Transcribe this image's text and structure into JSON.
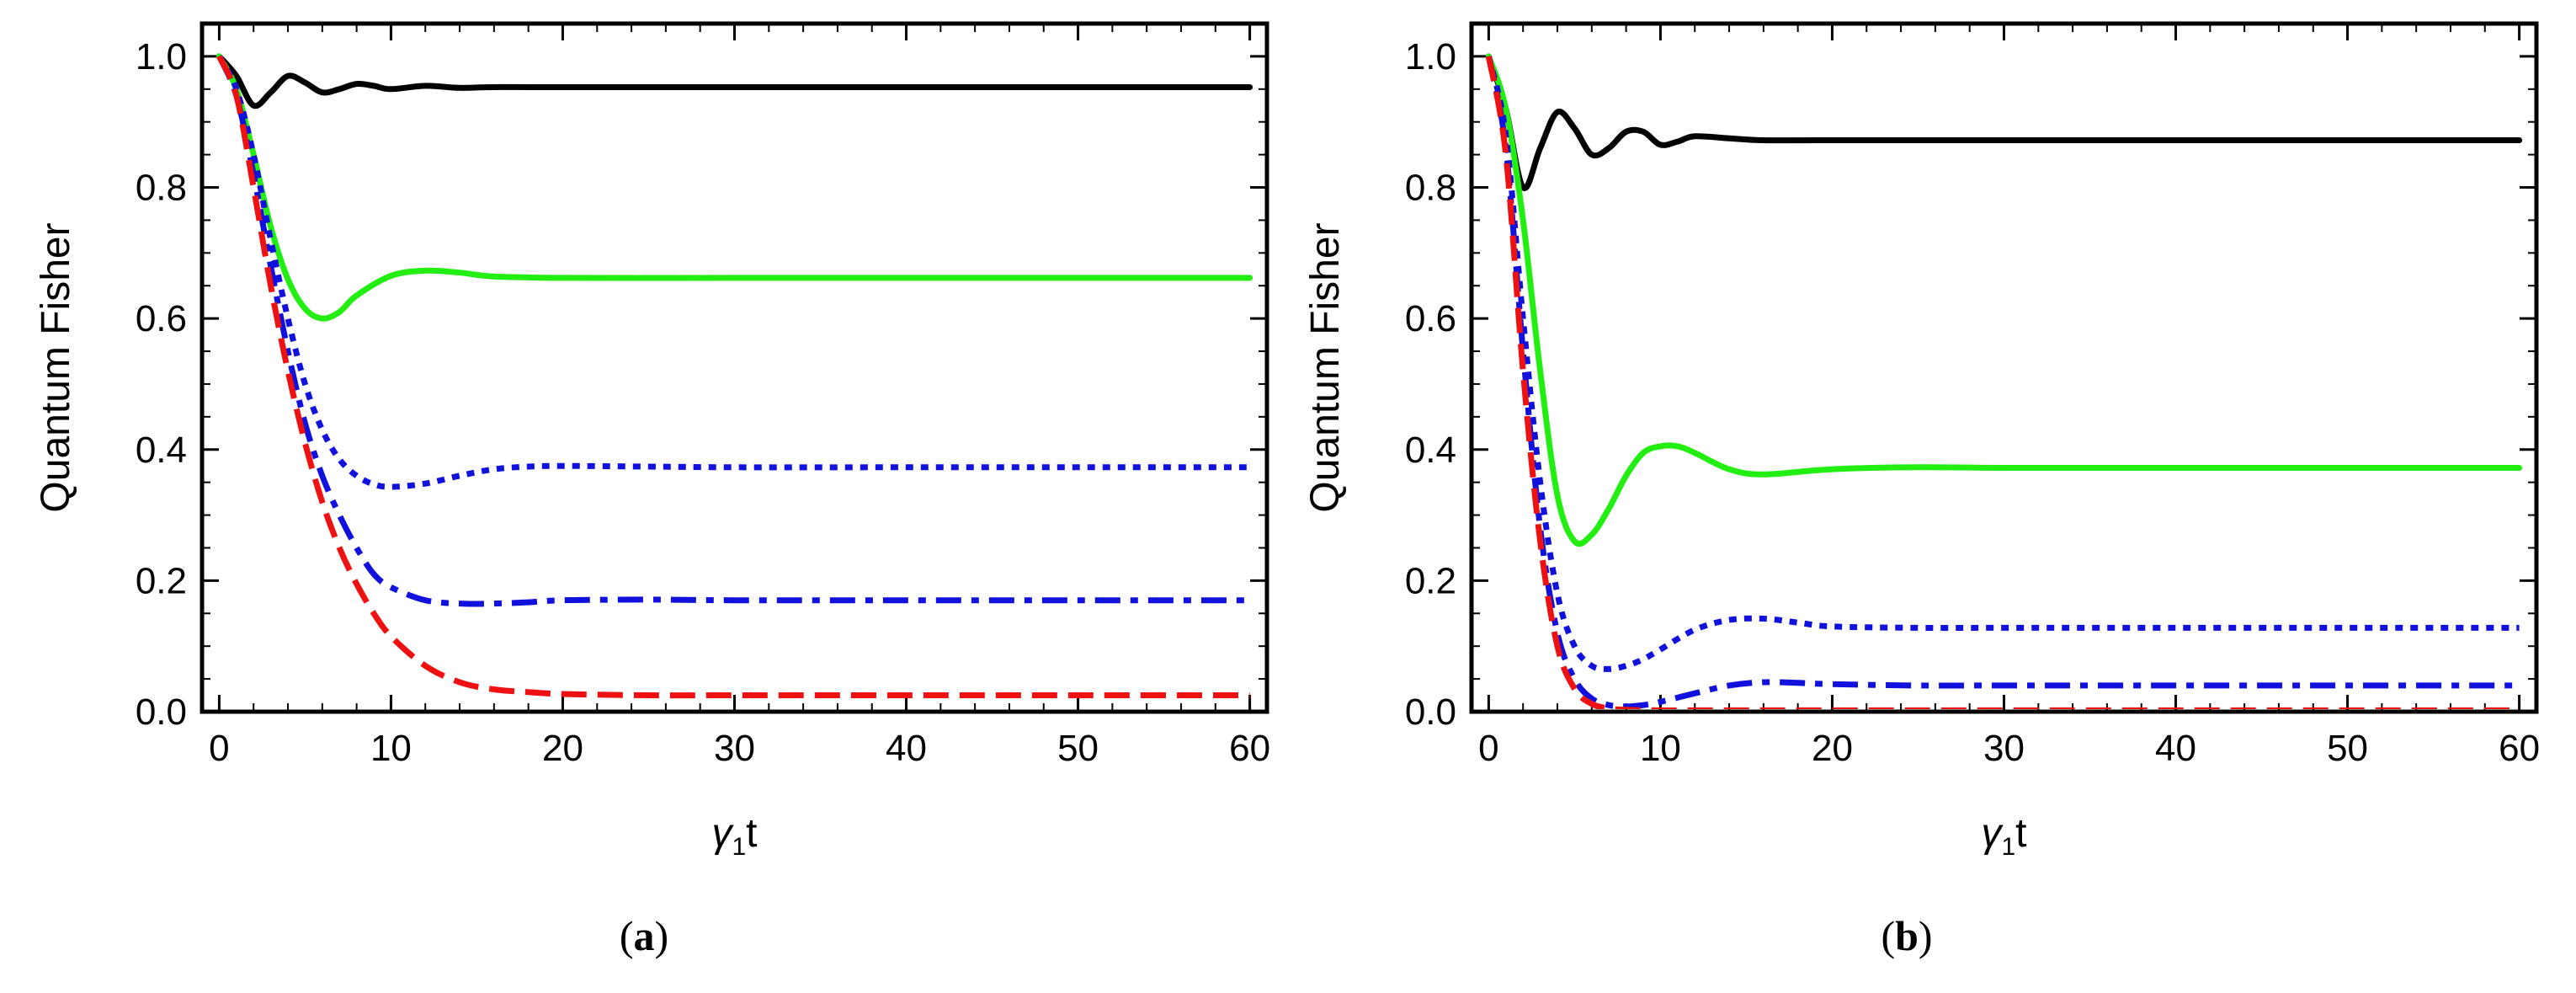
{
  "chart_data": [
    {
      "type": "line",
      "panel_label": "a",
      "title": "",
      "xlabel": {
        "symbol": "γ",
        "subscript": "1",
        "suffix": "t"
      },
      "ylabel": "Quantum Fisher",
      "xlim": [
        -1,
        61
      ],
      "ylim": [
        0,
        1.05
      ],
      "xticks": [
        0,
        10,
        20,
        30,
        40,
        50,
        60
      ],
      "yticks": [
        0.0,
        0.2,
        0.4,
        0.6,
        0.8,
        1.0
      ],
      "grid": false,
      "legend": "none",
      "series": [
        {
          "name": "black solid",
          "color": "#000000",
          "style": "solid",
          "x": [
            0,
            1,
            2,
            3,
            4,
            5,
            6,
            7,
            8,
            9,
            10,
            12,
            14,
            16,
            20,
            30,
            40,
            50,
            60
          ],
          "y": [
            1.0,
            0.97,
            0.925,
            0.945,
            0.97,
            0.96,
            0.945,
            0.95,
            0.958,
            0.955,
            0.95,
            0.955,
            0.952,
            0.953,
            0.953,
            0.953,
            0.953,
            0.953,
            0.953
          ]
        },
        {
          "name": "green solid",
          "color": "#22ee11",
          "style": "solid",
          "x": [
            0,
            1,
            2,
            3,
            4,
            5,
            6,
            7,
            8,
            10,
            12,
            14,
            16,
            20,
            30,
            40,
            50,
            60
          ],
          "y": [
            1.0,
            0.95,
            0.85,
            0.74,
            0.66,
            0.615,
            0.6,
            0.61,
            0.635,
            0.665,
            0.673,
            0.67,
            0.664,
            0.662,
            0.662,
            0.662,
            0.662,
            0.662
          ]
        },
        {
          "name": "blue dotted",
          "color": "#1111dd",
          "style": "dotted",
          "x": [
            0,
            1,
            2,
            3,
            4,
            5,
            6,
            7,
            8,
            9,
            10,
            12,
            14,
            16,
            18,
            20,
            25,
            30,
            40,
            50,
            60
          ],
          "y": [
            1.0,
            0.95,
            0.85,
            0.72,
            0.6,
            0.5,
            0.43,
            0.385,
            0.36,
            0.347,
            0.343,
            0.348,
            0.36,
            0.37,
            0.374,
            0.375,
            0.374,
            0.373,
            0.373,
            0.373,
            0.373
          ]
        },
        {
          "name": "blue dash-dot",
          "color": "#1111dd",
          "style": "dashdot",
          "x": [
            0,
            1,
            2,
            3,
            4,
            5,
            6,
            7,
            8,
            9,
            10,
            12,
            14,
            16,
            18,
            20,
            25,
            30,
            40,
            50,
            60
          ],
          "y": [
            1.0,
            0.94,
            0.82,
            0.68,
            0.55,
            0.44,
            0.36,
            0.3,
            0.25,
            0.21,
            0.19,
            0.17,
            0.165,
            0.165,
            0.167,
            0.17,
            0.171,
            0.17,
            0.17,
            0.17,
            0.17
          ]
        },
        {
          "name": "red dashed",
          "color": "#ee1111",
          "style": "dashed",
          "x": [
            0,
            1,
            2,
            3,
            4,
            5,
            6,
            7,
            8,
            9,
            10,
            12,
            14,
            16,
            18,
            20,
            25,
            30,
            40,
            50,
            60
          ],
          "y": [
            1.0,
            0.94,
            0.8,
            0.65,
            0.52,
            0.41,
            0.32,
            0.25,
            0.195,
            0.15,
            0.115,
            0.07,
            0.045,
            0.034,
            0.03,
            0.027,
            0.025,
            0.025,
            0.025,
            0.025,
            0.025
          ]
        }
      ]
    },
    {
      "type": "line",
      "panel_label": "b",
      "title": "",
      "xlabel": {
        "symbol": "γ",
        "subscript": "1",
        "suffix": "t"
      },
      "ylabel": "Quantum Fisher",
      "xlim": [
        -1,
        61
      ],
      "ylim": [
        0,
        1.05
      ],
      "xticks": [
        0,
        10,
        20,
        30,
        40,
        50,
        60
      ],
      "yticks": [
        0.0,
        0.2,
        0.4,
        0.6,
        0.8,
        1.0
      ],
      "grid": false,
      "legend": "none",
      "series": [
        {
          "name": "black solid",
          "color": "#000000",
          "style": "solid",
          "x": [
            0,
            1,
            2,
            3,
            4,
            5,
            6,
            7,
            8,
            9,
            10,
            11,
            12,
            14,
            16,
            20,
            30,
            40,
            50,
            60
          ],
          "y": [
            1.0,
            0.92,
            0.8,
            0.86,
            0.915,
            0.89,
            0.85,
            0.86,
            0.885,
            0.885,
            0.865,
            0.87,
            0.878,
            0.875,
            0.872,
            0.872,
            0.872,
            0.872,
            0.872,
            0.872
          ]
        },
        {
          "name": "green solid",
          "color": "#22ee11",
          "style": "solid",
          "x": [
            0,
            1,
            2,
            3,
            4,
            5,
            6,
            7,
            8,
            9,
            10,
            11,
            12,
            14,
            16,
            20,
            25,
            30,
            40,
            50,
            60
          ],
          "y": [
            1.0,
            0.92,
            0.75,
            0.52,
            0.33,
            0.26,
            0.27,
            0.31,
            0.36,
            0.395,
            0.405,
            0.405,
            0.395,
            0.37,
            0.362,
            0.37,
            0.373,
            0.372,
            0.372,
            0.372,
            0.372
          ]
        },
        {
          "name": "blue dotted",
          "color": "#1111dd",
          "style": "dotted",
          "x": [
            0,
            1,
            2,
            3,
            4,
            5,
            6,
            7,
            8,
            9,
            10,
            12,
            14,
            16,
            18,
            20,
            25,
            30,
            40,
            50,
            60
          ],
          "y": [
            1.0,
            0.88,
            0.6,
            0.35,
            0.18,
            0.1,
            0.07,
            0.065,
            0.07,
            0.08,
            0.095,
            0.125,
            0.14,
            0.142,
            0.136,
            0.13,
            0.128,
            0.128,
            0.128,
            0.128,
            0.128
          ]
        },
        {
          "name": "blue dash-dot",
          "color": "#1111dd",
          "style": "dashdot",
          "x": [
            0,
            1,
            2,
            3,
            4,
            5,
            6,
            7,
            8,
            9,
            10,
            12,
            14,
            16,
            18,
            20,
            25,
            30,
            40,
            50,
            60
          ],
          "y": [
            1.0,
            0.86,
            0.55,
            0.28,
            0.12,
            0.05,
            0.02,
            0.01,
            0.008,
            0.01,
            0.015,
            0.028,
            0.04,
            0.045,
            0.044,
            0.042,
            0.04,
            0.04,
            0.04,
            0.04,
            0.04
          ]
        },
        {
          "name": "red dashed",
          "color": "#ee1111",
          "style": "dashed",
          "x": [
            0,
            1,
            2,
            3,
            4,
            5,
            6,
            7,
            8,
            10,
            12,
            15,
            20,
            30,
            40,
            50,
            60
          ],
          "y": [
            1.0,
            0.85,
            0.52,
            0.26,
            0.1,
            0.035,
            0.012,
            0.005,
            0.003,
            0.002,
            0.002,
            0.002,
            0.002,
            0.002,
            0.002,
            0.002,
            0.002
          ]
        }
      ]
    }
  ]
}
